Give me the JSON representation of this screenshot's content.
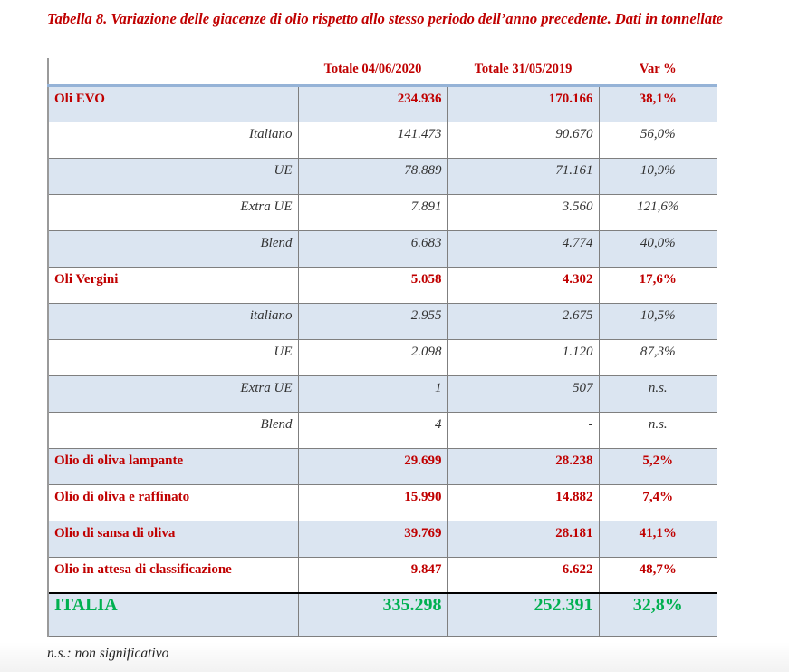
{
  "title": "Tabella 8. Variazione delle giacenze di olio rispetto allo stesso periodo dell’anno precedente. Dati in tonnellate",
  "headers": [
    "",
    "Totale 04/06/2020",
    "Totale 31/05/2019",
    "Var %"
  ],
  "rows": [
    {
      "type": "m",
      "label": "Oli EVO",
      "v2020": "234.936",
      "v2019": "170.166",
      "var": "38,1%"
    },
    {
      "type": "s",
      "label": "Italiano",
      "v2020": "141.473",
      "v2019": "90.670",
      "var": "56,0%"
    },
    {
      "type": "s",
      "label": "UE",
      "v2020": "78.889",
      "v2019": "71.161",
      "var": "10,9%"
    },
    {
      "type": "s",
      "label": "Extra UE",
      "v2020": "7.891",
      "v2019": "3.560",
      "var": "121,6%"
    },
    {
      "type": "s",
      "label": "Blend",
      "v2020": "6.683",
      "v2019": "4.774",
      "var": "40,0%"
    },
    {
      "type": "m",
      "label": "Oli Vergini",
      "v2020": "5.058",
      "v2019": "4.302",
      "var": "17,6%"
    },
    {
      "type": "s",
      "label": "italiano",
      "v2020": "2.955",
      "v2019": "2.675",
      "var": "10,5%"
    },
    {
      "type": "s",
      "label": "UE",
      "v2020": "2.098",
      "v2019": "1.120",
      "var": "87,3%"
    },
    {
      "type": "s",
      "label": "Extra UE",
      "v2020": "1",
      "v2019": "507",
      "var": "n.s."
    },
    {
      "type": "s",
      "label": "Blend",
      "v2020": "4",
      "v2019": "-",
      "var": "n.s."
    },
    {
      "type": "m",
      "label": "Olio di oliva lampante",
      "v2020": "29.699",
      "v2019": "28.238",
      "var": "5,2%"
    },
    {
      "type": "m",
      "label": "Olio di oliva e raffinato",
      "v2020": "15.990",
      "v2019": "14.882",
      "var": "7,4%"
    },
    {
      "type": "m",
      "label": "Olio di sansa di oliva",
      "v2020": "39.769",
      "v2019": "28.181",
      "var": "41,1%"
    },
    {
      "type": "m",
      "label": "Olio in attesa di classificazione",
      "v2020": "9.847",
      "v2019": "6.622",
      "var": "48,7%"
    },
    {
      "type": "t",
      "label": "ITALIA",
      "v2020": "335.298",
      "v2019": "252.391",
      "var": "32,8%"
    }
  ],
  "note": "n.s.: non significativo"
}
